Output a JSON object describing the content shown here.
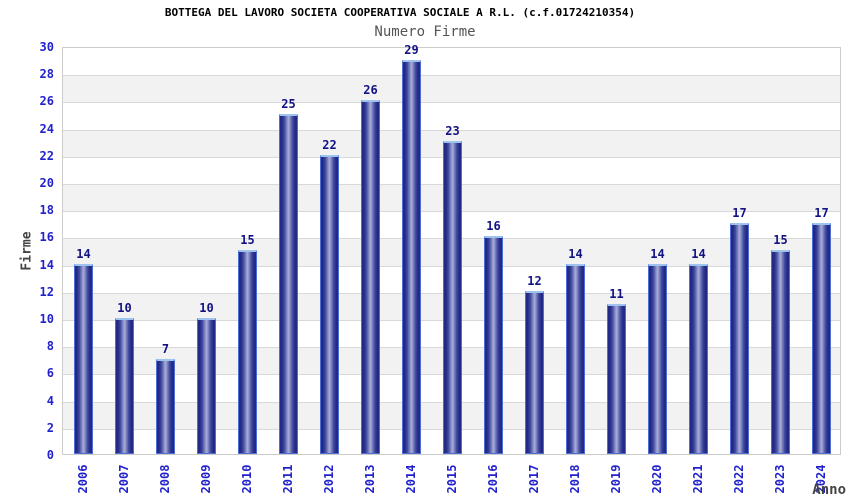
{
  "header": {
    "title": "BOTTEGA DEL LAVORO SOCIETA COOPERATIVA SOCIALE A R.L. (c.f.01724210354)",
    "subtitle": "Numero Firme"
  },
  "chart_data": {
    "type": "bar",
    "title": "Numero Firme",
    "categories": [
      "2006",
      "2007",
      "2008",
      "2009",
      "2010",
      "2011",
      "2012",
      "2013",
      "2014",
      "2015",
      "2016",
      "2017",
      "2018",
      "2019",
      "2020",
      "2021",
      "2022",
      "2023",
      "2024"
    ],
    "values": [
      14,
      10,
      7,
      10,
      15,
      25,
      22,
      26,
      29,
      23,
      16,
      12,
      14,
      11,
      14,
      14,
      17,
      15,
      17
    ],
    "xlabel": "Anno",
    "ylabel": "Firme",
    "ylim": [
      0,
      30
    ],
    "ytick_step": 2,
    "grid": true,
    "legend": "none",
    "bar_value_labels": true,
    "colors": {
      "bar_edge": "#232a86",
      "bar_mid": "#3c449c",
      "bar_center": "#a9afd9",
      "bar_border": "#4d6fd4",
      "bar_top_highlight": "#9ec3ee",
      "tick_label": "#2222cc",
      "value_label": "#121285",
      "band_fill": "#f2f2f2",
      "gridline": "#d9d9d9",
      "plot_border": "#cccccc",
      "axis_title": "#444444",
      "title_color": "#000000",
      "subtitle_color": "#555555"
    }
  }
}
